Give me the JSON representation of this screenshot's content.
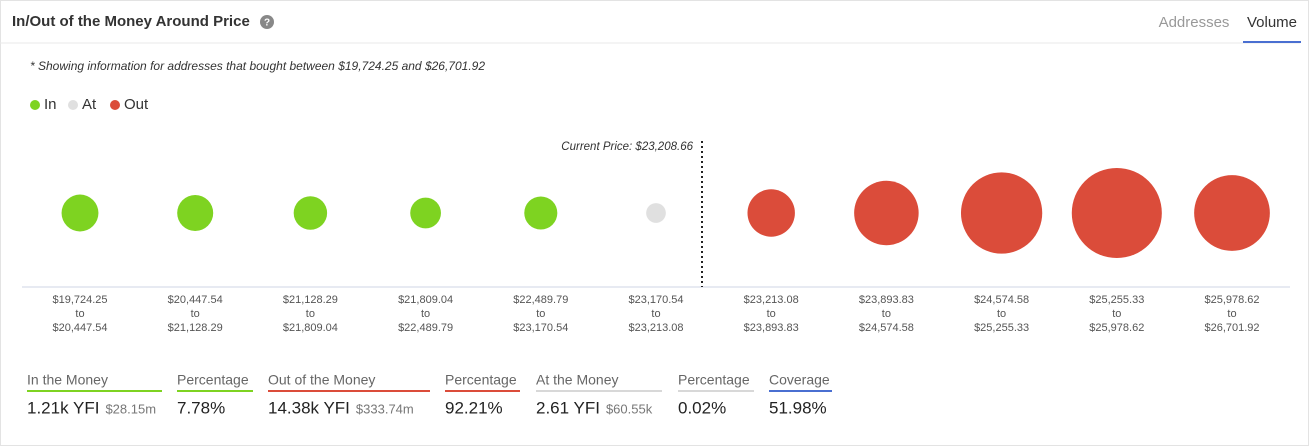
{
  "header": {
    "title": "In/Out of the Money Around Price",
    "tabs": [
      "Addresses",
      "Volume"
    ],
    "active_tab": "Volume"
  },
  "chart_data": {
    "type": "bubble",
    "note": "* Showing information for addresses that bought between $19,724.25 and $26,701.92",
    "annotation": "Current Price: $23,208.66",
    "categories": [
      {
        "from": "$19,724.25",
        "to": "$20,447.54"
      },
      {
        "from": "$20,447.54",
        "to": "$21,128.29"
      },
      {
        "from": "$21,128.29",
        "to": "$21,809.04"
      },
      {
        "from": "$21,809.04",
        "to": "$22,489.79"
      },
      {
        "from": "$22,489.79",
        "to": "$23,170.54"
      },
      {
        "from": "$23,170.54",
        "to": "$23,213.08"
      },
      {
        "from": "$23,213.08",
        "to": "$23,893.83"
      },
      {
        "from": "$23,893.83",
        "to": "$24,574.58"
      },
      {
        "from": "$24,574.58",
        "to": "$25,255.33"
      },
      {
        "from": "$25,255.33",
        "to": "$25,978.62"
      },
      {
        "from": "$25,978.62",
        "to": "$26,701.92"
      }
    ],
    "range_joiner": "to",
    "series": [
      {
        "name": "In",
        "color": "#7ed321",
        "values": [
          330,
          300,
          220,
          150,
          210,
          null,
          null,
          null,
          null,
          null,
          null
        ]
      },
      {
        "name": "At",
        "color": "#e0e0e0",
        "values": [
          null,
          null,
          null,
          null,
          null,
          2.61,
          null,
          null,
          null,
          null,
          null
        ]
      },
      {
        "name": "Out",
        "color": "#db4c3a",
        "values": [
          null,
          null,
          null,
          null,
          null,
          null,
          800,
          2000,
          3700,
          4800,
          3080
        ]
      }
    ]
  },
  "summary": [
    {
      "label": "In the Money",
      "value": "1.21k YFI",
      "detail": "$28.15m",
      "color": "#7ed321"
    },
    {
      "label": "Percentage",
      "value": "7.78%",
      "color": "#7ed321"
    },
    {
      "label": "Out of the Money",
      "value": "14.38k YFI",
      "detail": "$333.74m",
      "color": "#db4c3a"
    },
    {
      "label": "Percentage",
      "value": "92.21%",
      "color": "#db4c3a"
    },
    {
      "label": "At the Money",
      "value": "2.61 YFI",
      "detail": "$60.55k",
      "color": "#d8d8d8"
    },
    {
      "label": "Percentage",
      "value": "0.02%",
      "color": "#d8d8d8"
    },
    {
      "label": "Coverage",
      "value": "51.98%",
      "color": "#4a6fd1"
    }
  ]
}
